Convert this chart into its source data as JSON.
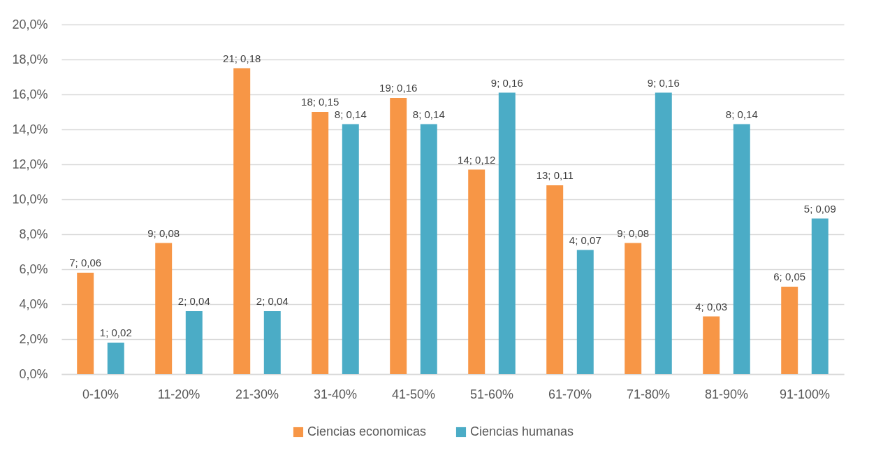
{
  "chart_data": {
    "type": "bar",
    "categories": [
      "0-10%",
      "11-20%",
      "21-30%",
      "31-40%",
      "41-50%",
      "51-60%",
      "61-70%",
      "71-80%",
      "81-90%",
      "91-100%"
    ],
    "series": [
      {
        "name": "Ciencias economicas",
        "color": "#f79646",
        "values": [
          0.058,
          0.075,
          0.175,
          0.15,
          0.158,
          0.117,
          0.108,
          0.075,
          0.033,
          0.05
        ],
        "value_labels": [
          "7; 0,06",
          "9; 0,08",
          "21; 0,18",
          "18; 0,15",
          "19; 0,16",
          "14; 0,12",
          "13; 0,11",
          "9; 0,08",
          "4; 0,03",
          "6; 0,05"
        ]
      },
      {
        "name": "Ciencias humanas",
        "color": "#4bacc6",
        "values": [
          0.018,
          0.036,
          0.036,
          0.143,
          0.143,
          0.161,
          0.071,
          0.161,
          0.143,
          0.089
        ],
        "value_labels": [
          "1; 0,02",
          "2; 0,04",
          "2; 0,04",
          "8; 0,14",
          "8; 0,14",
          "9; 0,16",
          "4; 0,07",
          "9; 0,16",
          "8; 0,14",
          "5; 0,09"
        ]
      }
    ],
    "ylim": [
      0,
      0.2
    ],
    "yticks": [
      {
        "value": 0,
        "label": "0,0%"
      },
      {
        "value": 0.02,
        "label": "2,0%"
      },
      {
        "value": 0.04,
        "label": "4,0%"
      },
      {
        "value": 0.06,
        "label": "6,0%"
      },
      {
        "value": 0.08,
        "label": "8,0%"
      },
      {
        "value": 0.1,
        "label": "10,0%"
      },
      {
        "value": 0.12,
        "label": "12,0%"
      },
      {
        "value": 0.14,
        "label": "14,0%"
      },
      {
        "value": 0.16,
        "label": "16,0%"
      },
      {
        "value": 0.18,
        "label": "18,0%"
      },
      {
        "value": 0.2,
        "label": "20,0%"
      }
    ],
    "grid": "y",
    "legend": "bottom"
  }
}
